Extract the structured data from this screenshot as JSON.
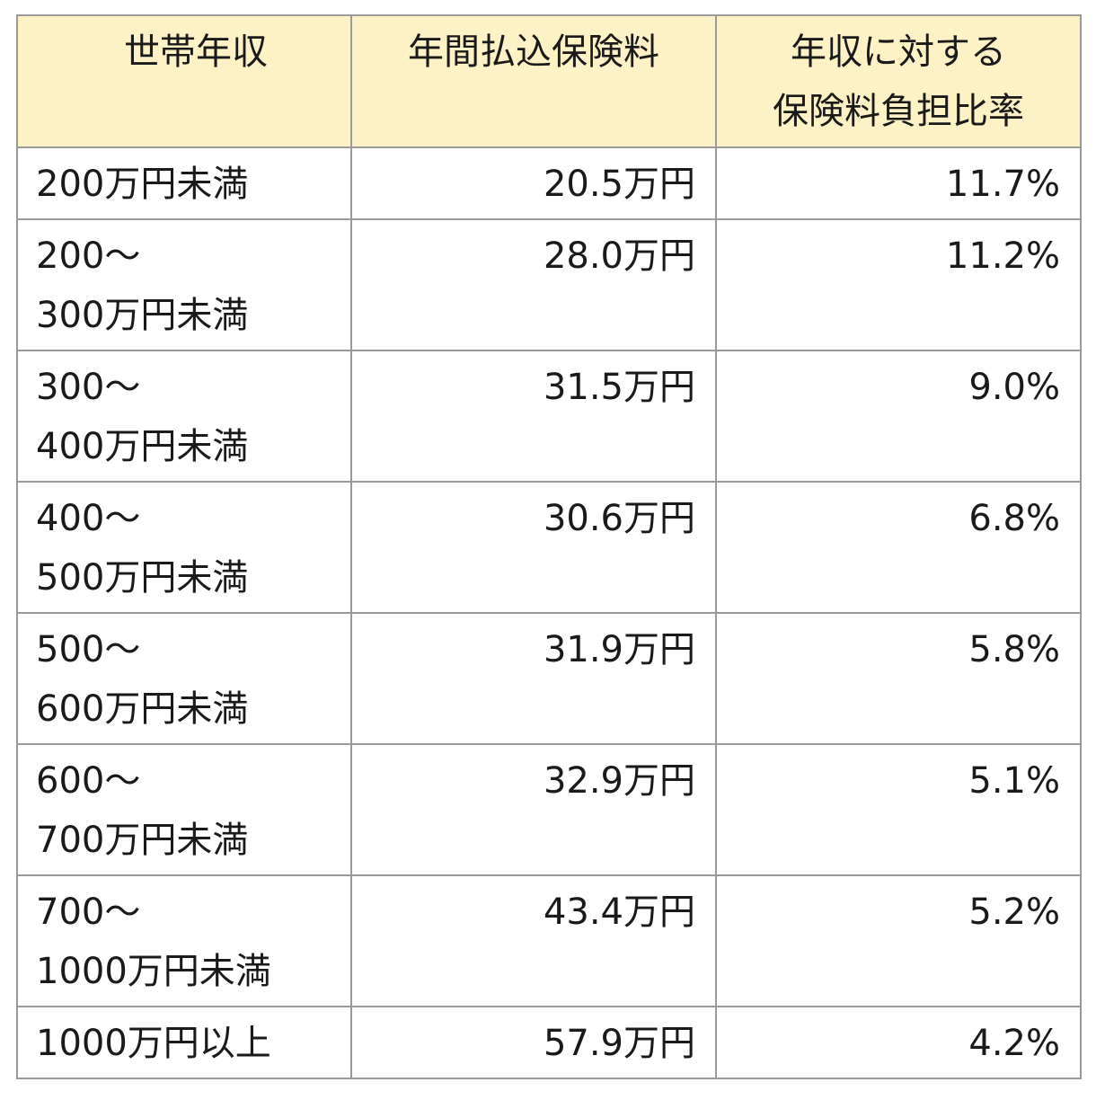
{
  "table": {
    "headers": {
      "income": "世帯年収",
      "premium": "年間払込保険料",
      "ratio_line1": "年収に対する",
      "ratio_line2": "保険料負担比率"
    },
    "rows": [
      {
        "income_line1": "200万円未満",
        "income_line2": "",
        "premium": "20.5万円",
        "ratio": "11.7%"
      },
      {
        "income_line1": "200～",
        "income_line2": "300万円未満",
        "premium": "28.0万円",
        "ratio": "11.2%"
      },
      {
        "income_line1": "300～",
        "income_line2": "400万円未満",
        "premium": "31.5万円",
        "ratio": "9.0%"
      },
      {
        "income_line1": "400～",
        "income_line2": "500万円未満",
        "premium": "30.6万円",
        "ratio": "6.8%"
      },
      {
        "income_line1": "500～",
        "income_line2": "600万円未満",
        "premium": "31.9万円",
        "ratio": "5.8%"
      },
      {
        "income_line1": "600～",
        "income_line2": "700万円未満",
        "premium": "32.9万円",
        "ratio": "5.1%"
      },
      {
        "income_line1": "700～",
        "income_line2": "1000万円未満",
        "premium": "43.4万円",
        "ratio": "5.2%"
      },
      {
        "income_line1": "1000万円以上",
        "income_line2": "",
        "premium": "57.9万円",
        "ratio": "4.2%"
      }
    ]
  },
  "colors": {
    "header_background": "#fdf1c6",
    "border": "#9a9a9a",
    "text": "#1a1a1a"
  }
}
